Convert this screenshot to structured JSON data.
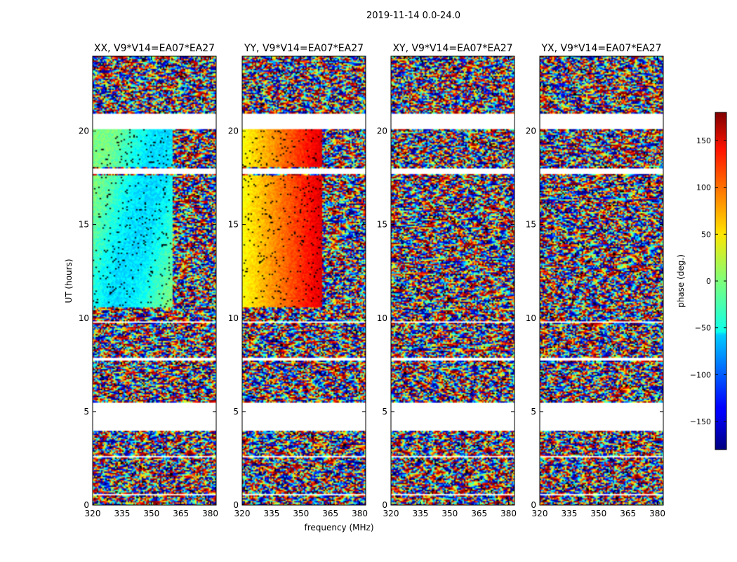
{
  "chart_data": {
    "type": "heatmap",
    "title": "2019-11-14 0.0-24.0",
    "xlabel": "frequency (MHz)",
    "ylabel": "UT (hours)",
    "xlim": [
      320,
      383
    ],
    "ylim": [
      0,
      24
    ],
    "xticks": [
      320,
      335,
      350,
      365,
      380
    ],
    "yticks": [
      0,
      5,
      10,
      15,
      20
    ],
    "panels": [
      {
        "title": "XX, V9*V14=EA07*EA27",
        "pol": "XX"
      },
      {
        "title": "YY, V9*V14=EA07*EA27",
        "pol": "YY"
      },
      {
        "title": "XY, V9*V14=EA07*EA27",
        "pol": "XY"
      },
      {
        "title": "YX, V9*V14=EA07*EA27",
        "pol": "YX"
      }
    ],
    "flagged_ut_ranges": [
      [
        5.5,
        4.0
      ],
      [
        2.65,
        2.55
      ],
      [
        0.6,
        0.55
      ],
      [
        7.85,
        7.7
      ],
      [
        18.0,
        17.7
      ],
      [
        20.9,
        20.1
      ],
      [
        9.85,
        9.75
      ]
    ],
    "colorbar": {
      "label": "phase (deg.)",
      "range": [
        -180,
        180
      ],
      "ticks": [
        150,
        100,
        50,
        0,
        -50,
        -100,
        -150
      ],
      "tick_labels": [
        "150",
        "100",
        "50",
        "0",
        "−50",
        "−100",
        "−150"
      ],
      "colormap": "jet"
    }
  }
}
